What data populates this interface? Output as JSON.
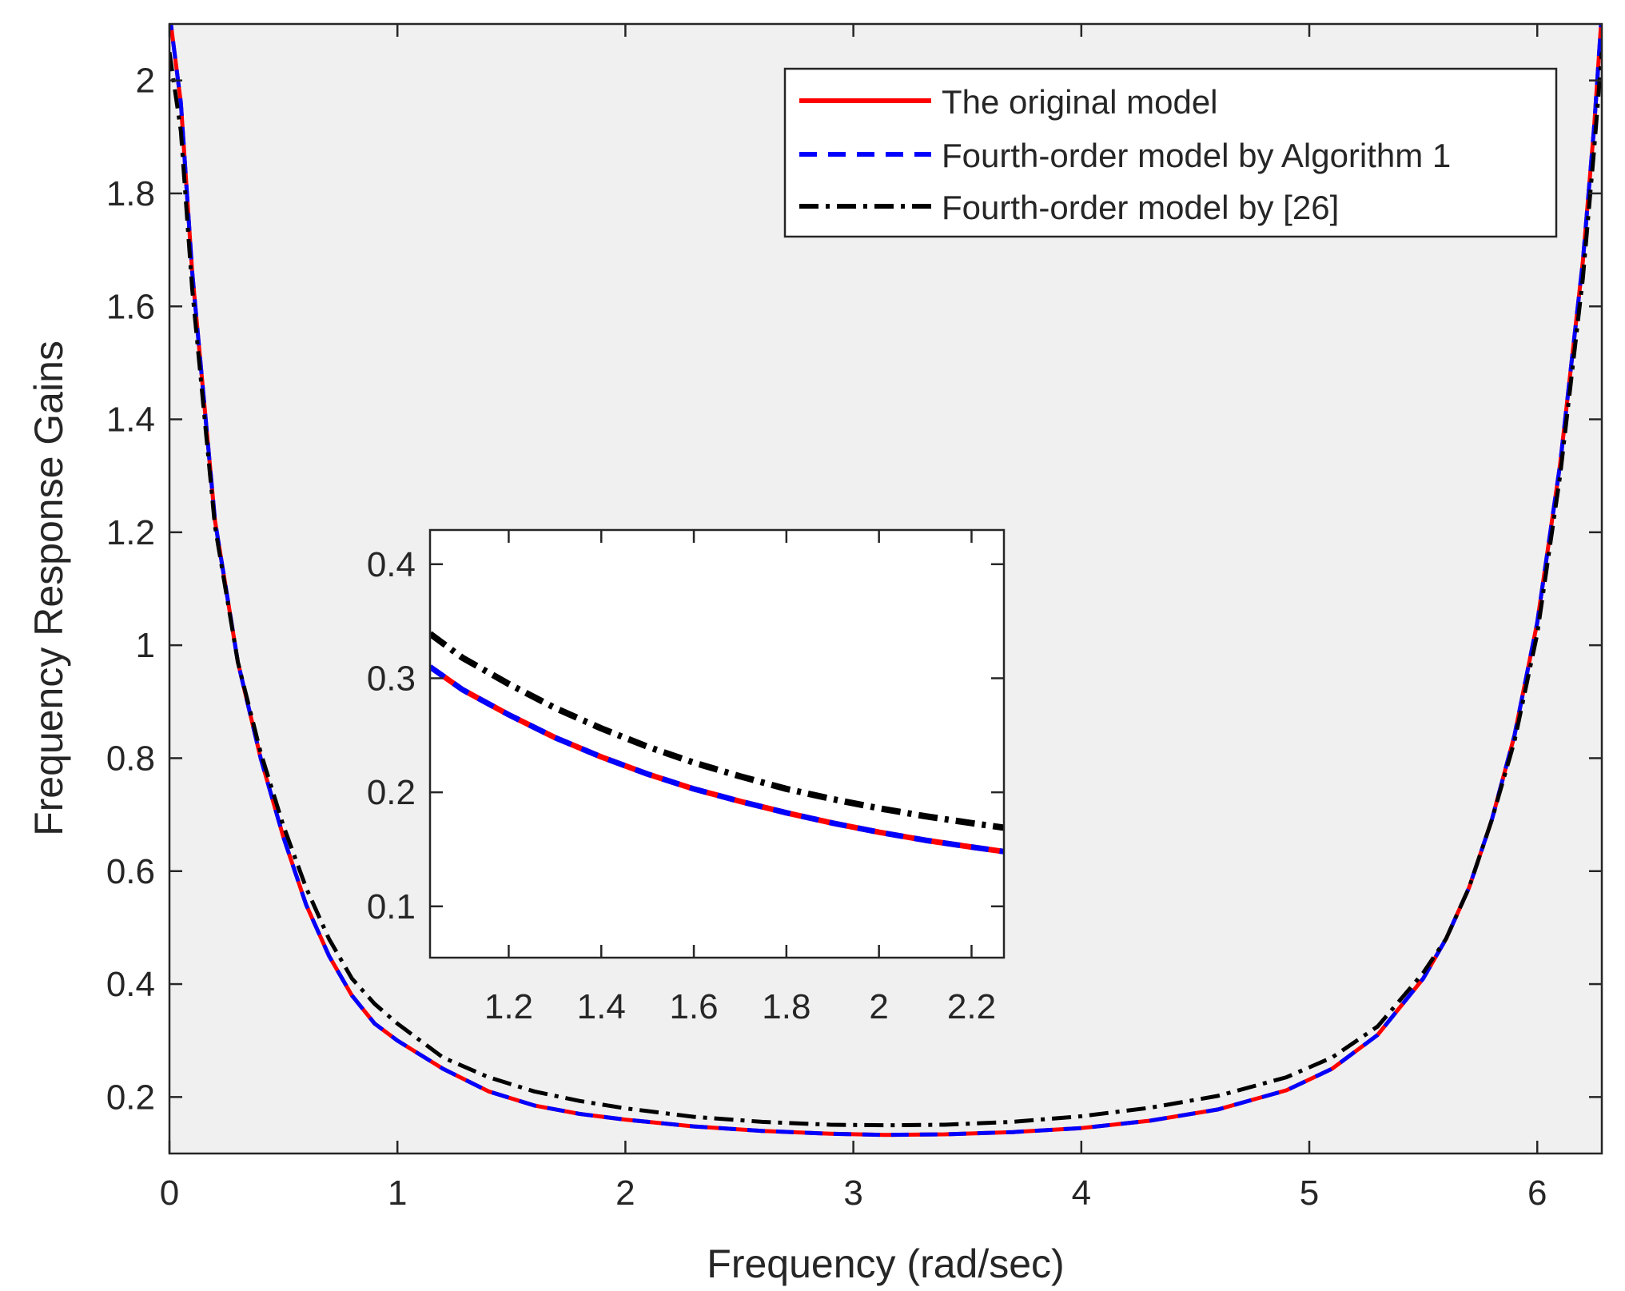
{
  "chart_data": [
    {
      "id": "main",
      "type": "line",
      "xlabel": "Frequency (rad/sec)",
      "ylabel": "Frequency Response Gains",
      "xlim": [
        0,
        6.2832
      ],
      "ylim": [
        0.1,
        2.1
      ],
      "xticks": [
        0,
        1,
        2,
        3,
        4,
        5,
        6
      ],
      "xtick_labels": [
        "0",
        "1",
        "2",
        "3",
        "4",
        "5",
        "6"
      ],
      "yticks": [
        0.2,
        0.4,
        0.6,
        0.8,
        1,
        1.2,
        1.4,
        1.6,
        1.8,
        2
      ],
      "ytick_labels": [
        "0.2",
        "0.4",
        "0.6",
        "0.8",
        "1",
        "1.2",
        "1.4",
        "1.6",
        "1.8",
        "2"
      ],
      "grid": false,
      "background": "#f0f0f0",
      "legend_location": "top-right",
      "x": [
        0,
        0.05,
        0.1,
        0.2,
        0.3,
        0.4,
        0.5,
        0.6,
        0.7,
        0.8,
        0.9,
        1.0,
        1.2,
        1.4,
        1.6,
        1.8,
        2.0,
        2.3,
        2.6,
        2.9,
        3.14,
        3.4,
        3.7,
        4.0,
        4.3,
        4.6,
        4.9,
        5.1,
        5.3,
        5.5,
        5.6,
        5.7,
        5.8,
        5.9,
        6.0,
        6.1,
        6.2,
        6.25,
        6.2832
      ],
      "series": [
        {
          "name": "The original model",
          "color": "#ff0000",
          "style": "solid",
          "values": [
            2.12,
            1.96,
            1.66,
            1.22,
            0.97,
            0.8,
            0.66,
            0.54,
            0.45,
            0.38,
            0.33,
            0.3,
            0.25,
            0.21,
            0.185,
            0.17,
            0.16,
            0.148,
            0.14,
            0.135,
            0.133,
            0.134,
            0.138,
            0.145,
            0.158,
            0.178,
            0.212,
            0.25,
            0.31,
            0.41,
            0.48,
            0.57,
            0.69,
            0.84,
            1.04,
            1.32,
            1.68,
            1.92,
            2.12
          ]
        },
        {
          "name": "Fourth-order model by Algorithm 1",
          "color": "#0000ff",
          "style": "dashed",
          "values": [
            2.12,
            1.96,
            1.66,
            1.22,
            0.97,
            0.8,
            0.66,
            0.54,
            0.45,
            0.38,
            0.33,
            0.3,
            0.25,
            0.21,
            0.185,
            0.17,
            0.16,
            0.148,
            0.14,
            0.135,
            0.133,
            0.134,
            0.138,
            0.145,
            0.158,
            0.178,
            0.212,
            0.25,
            0.31,
            0.41,
            0.48,
            0.57,
            0.69,
            0.84,
            1.04,
            1.32,
            1.68,
            1.92,
            2.12
          ]
        },
        {
          "name": "Fourth-order model by [26]",
          "color": "#000000",
          "style": "dashdot",
          "values": [
            2.05,
            1.91,
            1.63,
            1.21,
            0.97,
            0.81,
            0.68,
            0.57,
            0.48,
            0.41,
            0.365,
            0.33,
            0.27,
            0.235,
            0.21,
            0.193,
            0.18,
            0.165,
            0.156,
            0.151,
            0.15,
            0.151,
            0.156,
            0.166,
            0.181,
            0.202,
            0.235,
            0.27,
            0.325,
            0.42,
            0.48,
            0.57,
            0.69,
            0.83,
            1.02,
            1.3,
            1.65,
            1.88,
            2.05
          ]
        }
      ]
    },
    {
      "id": "inset",
      "type": "line",
      "xlim": [
        1.03,
        2.27
      ],
      "ylim": [
        0.055,
        0.43
      ],
      "xticks": [
        1.2,
        1.4,
        1.6,
        1.8,
        2,
        2.2
      ],
      "xtick_labels": [
        "1.2",
        "1.4",
        "1.6",
        "1.8",
        "2",
        "2.2"
      ],
      "yticks": [
        0.1,
        0.2,
        0.3,
        0.4
      ],
      "ytick_labels": [
        "0.1",
        "0.2",
        "0.3",
        "0.4"
      ],
      "grid": false,
      "background": "#ffffff",
      "x": [
        1.03,
        1.1,
        1.2,
        1.3,
        1.4,
        1.5,
        1.6,
        1.7,
        1.8,
        1.9,
        2.0,
        2.1,
        2.2,
        2.27
      ],
      "series": [
        {
          "name": "The original model",
          "color": "#ff0000",
          "style": "solid",
          "values": [
            0.31,
            0.29,
            0.268,
            0.248,
            0.231,
            0.216,
            0.203,
            0.192,
            0.182,
            0.173,
            0.165,
            0.158,
            0.152,
            0.148
          ]
        },
        {
          "name": "Fourth-order model by Algorithm 1",
          "color": "#0000ff",
          "style": "dashed",
          "values": [
            0.31,
            0.29,
            0.268,
            0.248,
            0.231,
            0.216,
            0.203,
            0.192,
            0.182,
            0.173,
            0.165,
            0.158,
            0.152,
            0.148
          ]
        },
        {
          "name": "Fourth-order model by [26]",
          "color": "#000000",
          "style": "dashdot",
          "values": [
            0.339,
            0.318,
            0.295,
            0.274,
            0.256,
            0.24,
            0.226,
            0.214,
            0.203,
            0.194,
            0.186,
            0.179,
            0.173,
            0.169
          ]
        }
      ]
    }
  ]
}
